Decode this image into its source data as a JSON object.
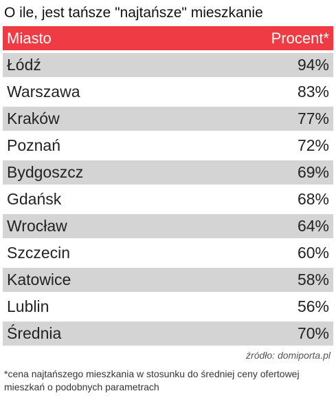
{
  "title": "O ile, jest tańsze \"najtańsze\" mieszkanie",
  "colors": {
    "header_bg": "#ef3b43",
    "shaded_row": "#d4d4d4",
    "plain_row": "#ffffff"
  },
  "chart_data": {
    "type": "table",
    "title": "O ile, jest tańsze \"najtańsze\" mieszkanie",
    "columns": [
      "Miasto",
      "Procent*"
    ],
    "rows": [
      {
        "city": "Łódź",
        "percent": "94%"
      },
      {
        "city": "Warszawa",
        "percent": "83%"
      },
      {
        "city": "Kraków",
        "percent": "77%"
      },
      {
        "city": "Poznań",
        "percent": "72%"
      },
      {
        "city": "Bydgoszcz",
        "percent": "69%"
      },
      {
        "city": "Gdańsk",
        "percent": "68%"
      },
      {
        "city": "Wrocław",
        "percent": "64%"
      },
      {
        "city": "Szczecin",
        "percent": "60%"
      },
      {
        "city": "Katowice",
        "percent": "58%"
      },
      {
        "city": "Lublin",
        "percent": "56%"
      },
      {
        "city": "Średnia",
        "percent": "70%"
      }
    ]
  },
  "source": "źródło: domiporta.pl",
  "footnote": "*cena najtańszego mieszkania w stosunku do średniej ceny ofertowej mieszkań o podobnych parametrach"
}
